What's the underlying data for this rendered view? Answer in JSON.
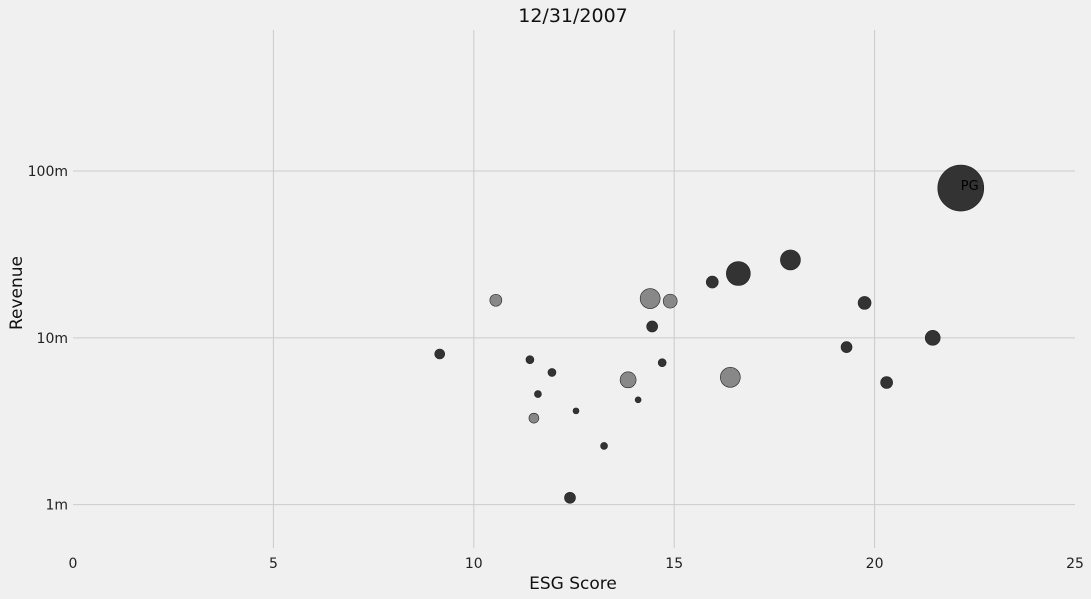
{
  "chart_data": {
    "type": "scatter",
    "title": "12/31/2007",
    "xlabel": "ESG Score",
    "ylabel": "Revenue",
    "xlim": [
      0,
      25
    ],
    "ylim": [
      0.55,
      700
    ],
    "y_scale": "log",
    "x_ticks": [
      0,
      5,
      10,
      15,
      20,
      25
    ],
    "x_tick_labels": [
      "0",
      "5",
      "10",
      "15",
      "20",
      "25"
    ],
    "y_ticks": [
      1,
      10,
      100
    ],
    "y_tick_labels": [
      "1m",
      "10m",
      "100m"
    ],
    "grid": true,
    "colors": {
      "dark": "#333333",
      "light": "#888888",
      "edge": "#222222",
      "background": "#f0f0f0",
      "grid": "#cbcbcb"
    },
    "points": [
      {
        "x": 9.15,
        "y": 8.0,
        "size": 5,
        "shade": "dark"
      },
      {
        "x": 10.55,
        "y": 16.8,
        "size": 6,
        "shade": "light"
      },
      {
        "x": 11.4,
        "y": 7.4,
        "size": 4,
        "shade": "dark"
      },
      {
        "x": 11.5,
        "y": 3.3,
        "size": 5,
        "shade": "light"
      },
      {
        "x": 11.6,
        "y": 4.6,
        "size": 3.5,
        "shade": "dark"
      },
      {
        "x": 11.95,
        "y": 6.2,
        "size": 4,
        "shade": "dark"
      },
      {
        "x": 12.4,
        "y": 1.1,
        "size": 5.5,
        "shade": "dark"
      },
      {
        "x": 12.55,
        "y": 3.65,
        "size": 3,
        "shade": "dark"
      },
      {
        "x": 13.25,
        "y": 2.25,
        "size": 3.5,
        "shade": "dark"
      },
      {
        "x": 13.85,
        "y": 5.6,
        "size": 8,
        "shade": "light"
      },
      {
        "x": 14.1,
        "y": 4.25,
        "size": 3,
        "shade": "dark"
      },
      {
        "x": 14.4,
        "y": 17.2,
        "size": 10,
        "shade": "light"
      },
      {
        "x": 14.45,
        "y": 11.7,
        "size": 5.5,
        "shade": "dark"
      },
      {
        "x": 14.7,
        "y": 7.1,
        "size": 4,
        "shade": "dark"
      },
      {
        "x": 14.9,
        "y": 16.6,
        "size": 7,
        "shade": "light"
      },
      {
        "x": 15.95,
        "y": 21.6,
        "size": 6,
        "shade": "dark"
      },
      {
        "x": 16.4,
        "y": 5.8,
        "size": 10,
        "shade": "light"
      },
      {
        "x": 16.6,
        "y": 24.3,
        "size": 12,
        "shade": "dark"
      },
      {
        "x": 17.9,
        "y": 29.3,
        "size": 10,
        "shade": "dark"
      },
      {
        "x": 19.3,
        "y": 8.8,
        "size": 5.5,
        "shade": "dark"
      },
      {
        "x": 19.75,
        "y": 16.2,
        "size": 6.5,
        "shade": "dark"
      },
      {
        "x": 20.3,
        "y": 5.4,
        "size": 6,
        "shade": "dark"
      },
      {
        "x": 21.45,
        "y": 10.0,
        "size": 7.5,
        "shade": "dark"
      },
      {
        "x": 22.15,
        "y": 79.0,
        "size": 23,
        "shade": "dark",
        "label": "PG"
      }
    ]
  }
}
